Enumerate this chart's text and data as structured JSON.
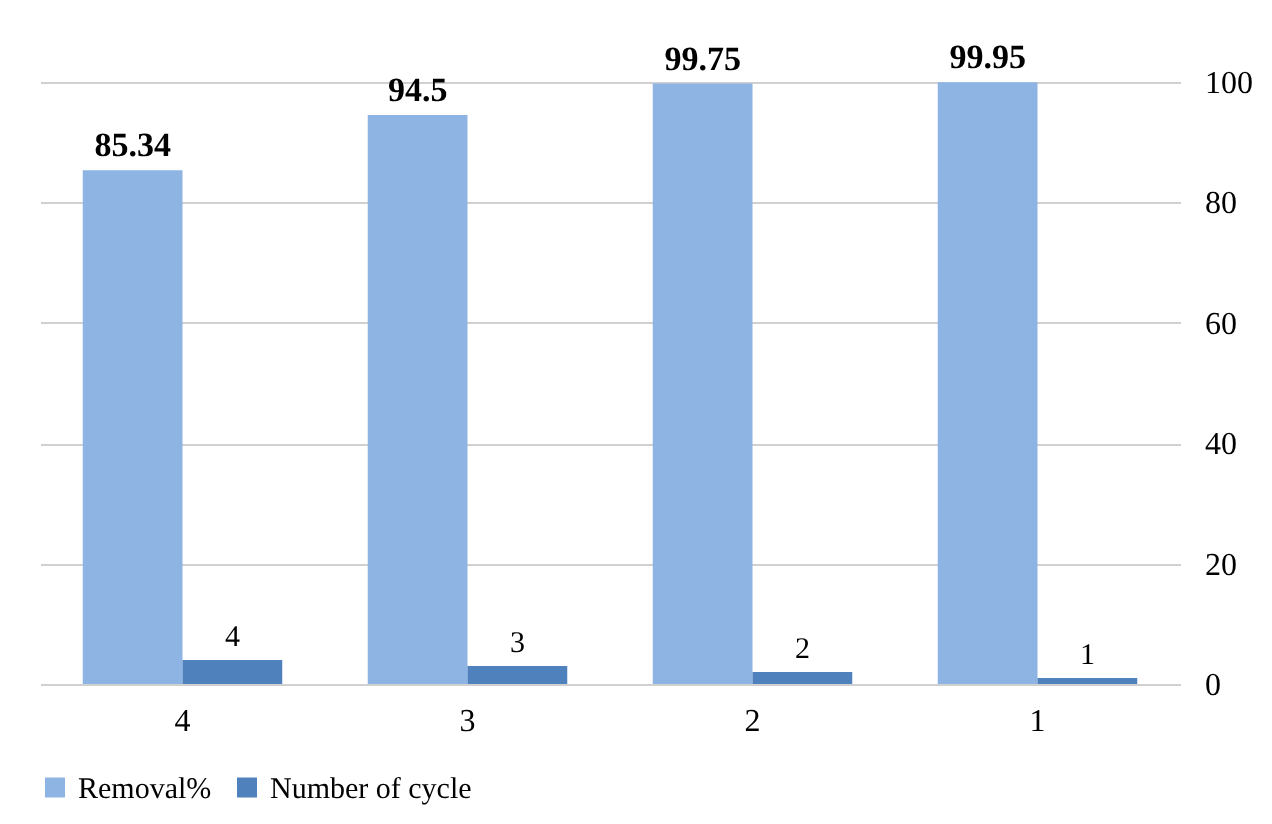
{
  "chart_data": {
    "type": "bar",
    "categories": [
      "4",
      "3",
      "2",
      "1"
    ],
    "series": [
      {
        "name": "Removal%",
        "color": "#8db4e2",
        "values": [
          85.34,
          94.5,
          99.75,
          99.95
        ]
      },
      {
        "name": "Number of cycle",
        "color": "#4f81bd",
        "values": [
          4,
          3,
          2,
          1
        ]
      }
    ],
    "ylim": [
      0,
      100
    ],
    "yticks": [
      0,
      20,
      40,
      60,
      80,
      100
    ],
    "grid": "y",
    "data_labels": true,
    "legend": "bottom"
  }
}
